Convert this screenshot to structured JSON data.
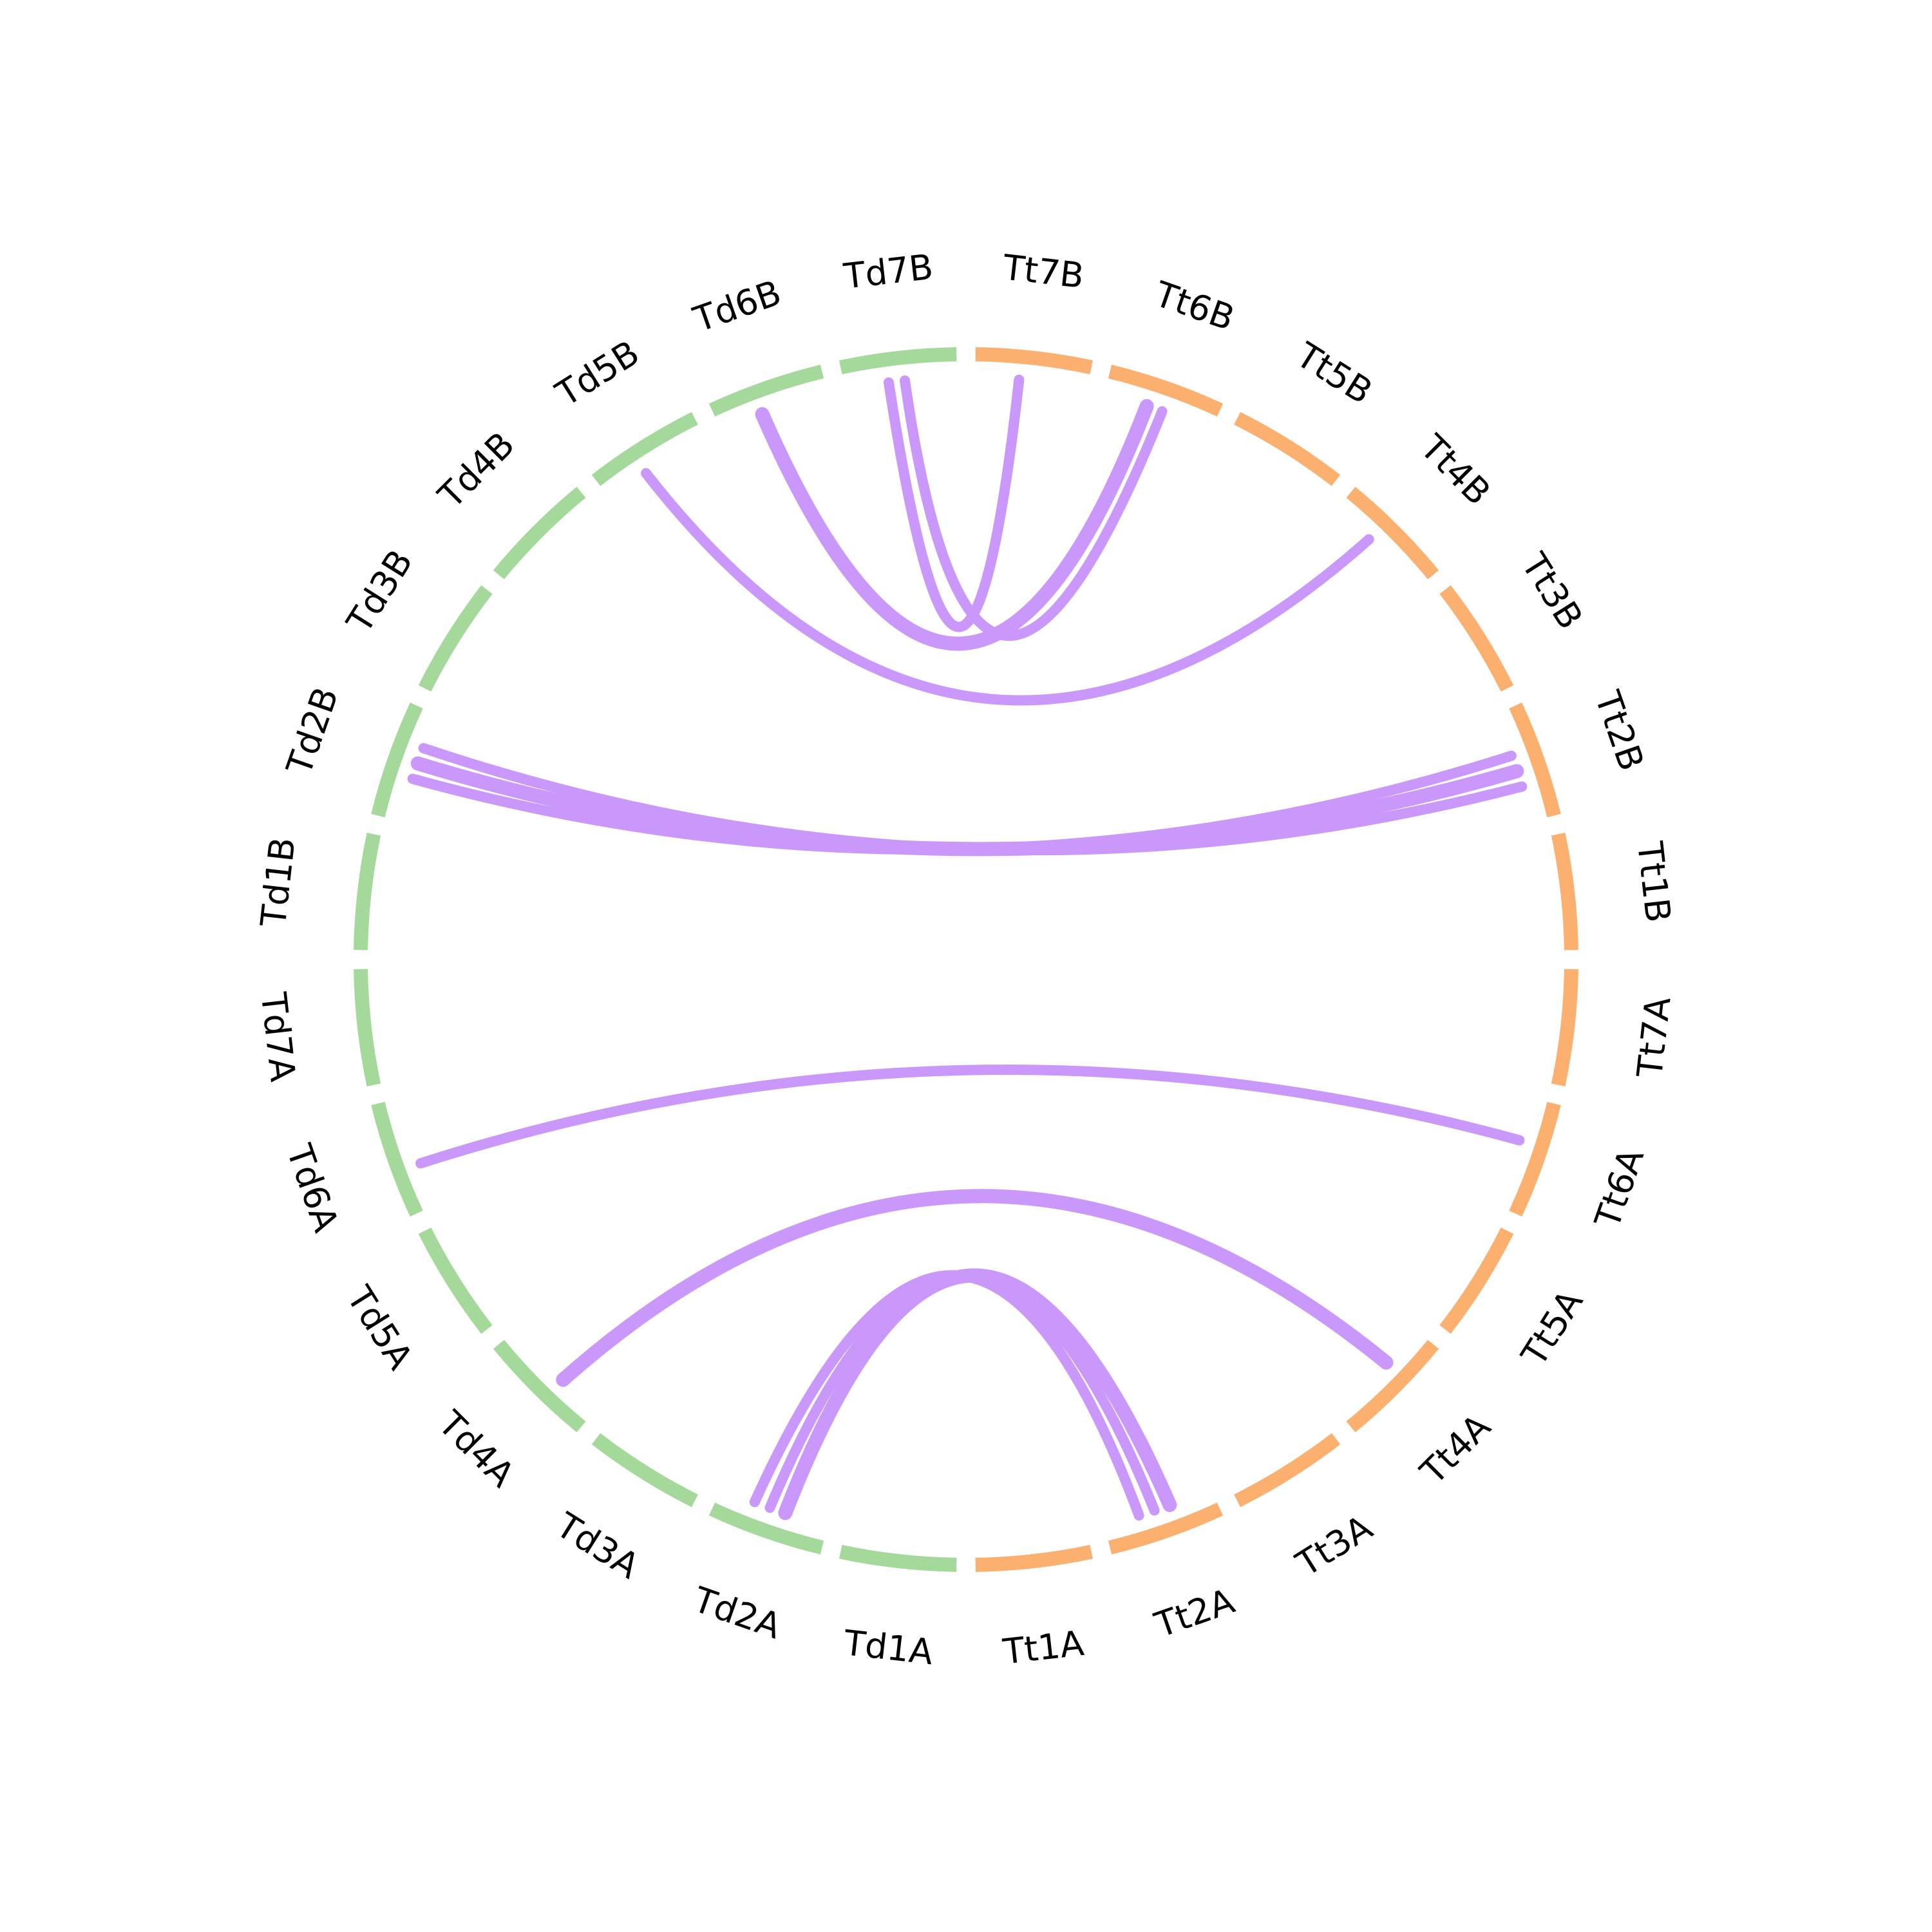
{
  "colors": {
    "td_group": "#a5d99b",
    "tt_group": "#fbb06f",
    "link": "#c998fa",
    "label": "#000000",
    "background": "#ffffff"
  },
  "segments": [
    {
      "id": "Td1A",
      "label": "Td1A",
      "group": "td"
    },
    {
      "id": "Td2A",
      "label": "Td2A",
      "group": "td"
    },
    {
      "id": "Td3A",
      "label": "Td3A",
      "group": "td"
    },
    {
      "id": "Td4A",
      "label": "Td4A",
      "group": "td"
    },
    {
      "id": "Td5A",
      "label": "Td5A",
      "group": "td"
    },
    {
      "id": "Td6A",
      "label": "Td6A",
      "group": "td"
    },
    {
      "id": "Td7A",
      "label": "Td7A",
      "group": "td"
    },
    {
      "id": "Td1B",
      "label": "Td1B",
      "group": "td"
    },
    {
      "id": "Td2B",
      "label": "Td2B",
      "group": "td"
    },
    {
      "id": "Td3B",
      "label": "Td3B",
      "group": "td"
    },
    {
      "id": "Td4B",
      "label": "Td4B",
      "group": "td"
    },
    {
      "id": "Td5B",
      "label": "Td5B",
      "group": "td"
    },
    {
      "id": "Td6B",
      "label": "Td6B",
      "group": "td"
    },
    {
      "id": "Td7B",
      "label": "Td7B",
      "group": "td"
    },
    {
      "id": "Tt7B",
      "label": "Tt7B",
      "group": "tt"
    },
    {
      "id": "Tt6B",
      "label": "Tt6B",
      "group": "tt"
    },
    {
      "id": "Tt5B",
      "label": "Tt5B",
      "group": "tt"
    },
    {
      "id": "Tt4B",
      "label": "Tt4B",
      "group": "tt"
    },
    {
      "id": "Tt3B",
      "label": "Tt3B",
      "group": "tt"
    },
    {
      "id": "Tt2B",
      "label": "Tt2B",
      "group": "tt"
    },
    {
      "id": "Tt1B",
      "label": "Tt1B",
      "group": "tt"
    },
    {
      "id": "Tt7A",
      "label": "Tt7A",
      "group": "tt"
    },
    {
      "id": "Tt6A",
      "label": "Tt6A",
      "group": "tt"
    },
    {
      "id": "Tt5A",
      "label": "Tt5A",
      "group": "tt"
    },
    {
      "id": "Tt4A",
      "label": "Tt4A",
      "group": "tt"
    },
    {
      "id": "Tt3A",
      "label": "Tt3A",
      "group": "tt"
    },
    {
      "id": "Tt2A",
      "label": "Tt2A",
      "group": "tt"
    },
    {
      "id": "Tt1A",
      "label": "Tt1A",
      "group": "tt"
    }
  ],
  "links": [
    {
      "from": "Td2A",
      "to": "Tt2A"
    },
    {
      "from": "Td2A",
      "to": "Tt2A"
    },
    {
      "from": "Td2A",
      "to": "Tt2A"
    },
    {
      "from": "Td4A",
      "to": "Tt4A"
    },
    {
      "from": "Td6A",
      "to": "Tt6A"
    },
    {
      "from": "Td2B",
      "to": "Tt2B"
    },
    {
      "from": "Td2B",
      "to": "Tt2B"
    },
    {
      "from": "Td2B",
      "to": "Tt2B"
    },
    {
      "from": "Td5B",
      "to": "Tt4B"
    },
    {
      "from": "Td6B",
      "to": "Tt6B"
    },
    {
      "from": "Td7B",
      "to": "Tt7B"
    },
    {
      "from": "Td7B",
      "to": "Tt6B"
    }
  ]
}
